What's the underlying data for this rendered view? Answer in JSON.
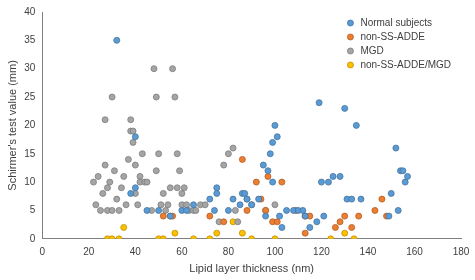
{
  "chart_data": {
    "type": "scatter",
    "x_label": "Lipid layer thickness (nm)",
    "y_label": "Schirmer's test value (mm)",
    "xlim": [
      0,
      180
    ],
    "xticks": [
      0,
      20,
      40,
      60,
      80,
      100,
      120,
      140,
      160,
      180
    ],
    "ylim": [
      0,
      40
    ],
    "yticks": [
      0,
      5,
      10,
      15,
      20,
      25,
      30,
      35,
      40
    ],
    "grid": false,
    "legend": "upper right",
    "marker": "circle",
    "series": [
      {
        "name": "Normal subjects",
        "color": "#5b9bd5",
        "x": [
          32,
          40,
          38,
          40,
          45,
          50,
          55,
          60,
          62,
          65,
          72,
          74,
          75,
          75,
          80,
          82,
          85,
          86,
          87,
          88,
          90,
          93,
          95,
          96,
          97,
          98,
          99,
          99,
          100,
          101,
          102,
          103,
          105,
          108,
          110,
          112,
          113,
          115,
          118,
          119,
          120,
          121,
          123,
          125,
          128,
          130,
          131,
          133,
          135,
          137,
          149,
          150,
          152,
          153,
          154,
          155,
          156,
          157
        ],
        "values": [
          35,
          18,
          8,
          9,
          5,
          5,
          4,
          5,
          5,
          6,
          7,
          5,
          9,
          8,
          5,
          7,
          6,
          8,
          8,
          7,
          6,
          7,
          13,
          4,
          12,
          15,
          10,
          17,
          20,
          18,
          4,
          2,
          5,
          5,
          5,
          5,
          4,
          2,
          3,
          24,
          10,
          4,
          10,
          11,
          11,
          23,
          7,
          7,
          20,
          7,
          4,
          8,
          16,
          5,
          12,
          12,
          10,
          11
        ]
      },
      {
        "name": "non-SS-ADDE",
        "color": "#ed7d31",
        "x": [
          52,
          56,
          72,
          78,
          86,
          88,
          92,
          94,
          96,
          97,
          99,
          101,
          103,
          109,
          113,
          113,
          115,
          126,
          128,
          130,
          133,
          136,
          143,
          146,
          148
        ],
        "values": [
          4,
          4,
          4,
          3,
          14,
          5,
          10,
          7,
          5,
          11,
          3,
          3,
          10,
          5,
          4,
          1,
          4,
          2,
          3,
          4,
          2,
          4,
          5,
          7,
          4
        ]
      },
      {
        "name": "MGD",
        "color": "#a5a5a5",
        "x": [
          22,
          23,
          24,
          25,
          26,
          27,
          27,
          28,
          28,
          29,
          30,
          30,
          31,
          32,
          33,
          34,
          35,
          36,
          37,
          38,
          38,
          39,
          39,
          40,
          40,
          41,
          42,
          42,
          43,
          44,
          45,
          47,
          48,
          49,
          49,
          50,
          51,
          52,
          53,
          54,
          55,
          56,
          57,
          58,
          58,
          59,
          60,
          60,
          61,
          62,
          63,
          65,
          66,
          68,
          70,
          76,
          78,
          80,
          82,
          83,
          84,
          88,
          90,
          96,
          100
        ],
        "values": [
          10,
          6,
          11,
          5,
          8,
          21,
          13,
          5,
          9,
          10,
          25,
          5,
          12,
          7,
          5,
          9,
          11,
          6,
          14,
          21,
          19,
          17,
          19,
          8,
          13,
          6,
          11,
          10,
          15,
          10,
          10,
          5,
          30,
          25,
          12,
          15,
          6,
          8,
          5,
          6,
          9,
          30,
          25,
          15,
          9,
          12,
          6,
          8,
          9,
          6,
          5,
          5,
          5,
          6,
          6,
          3,
          13,
          15,
          16,
          5,
          3,
          7,
          6,
          5,
          6
        ]
      },
      {
        "name": "non-SS-ADDE/MGD",
        "color": "#ffc000",
        "x": [
          28,
          30,
          33,
          35,
          50,
          52,
          55,
          57,
          65,
          72,
          75,
          82,
          86,
          90,
          100,
          124,
          130,
          134
        ],
        "values": [
          0,
          0,
          0,
          2,
          0,
          0,
          4,
          1,
          0,
          0,
          1,
          3,
          1,
          0,
          0,
          0,
          1,
          0
        ]
      }
    ]
  }
}
